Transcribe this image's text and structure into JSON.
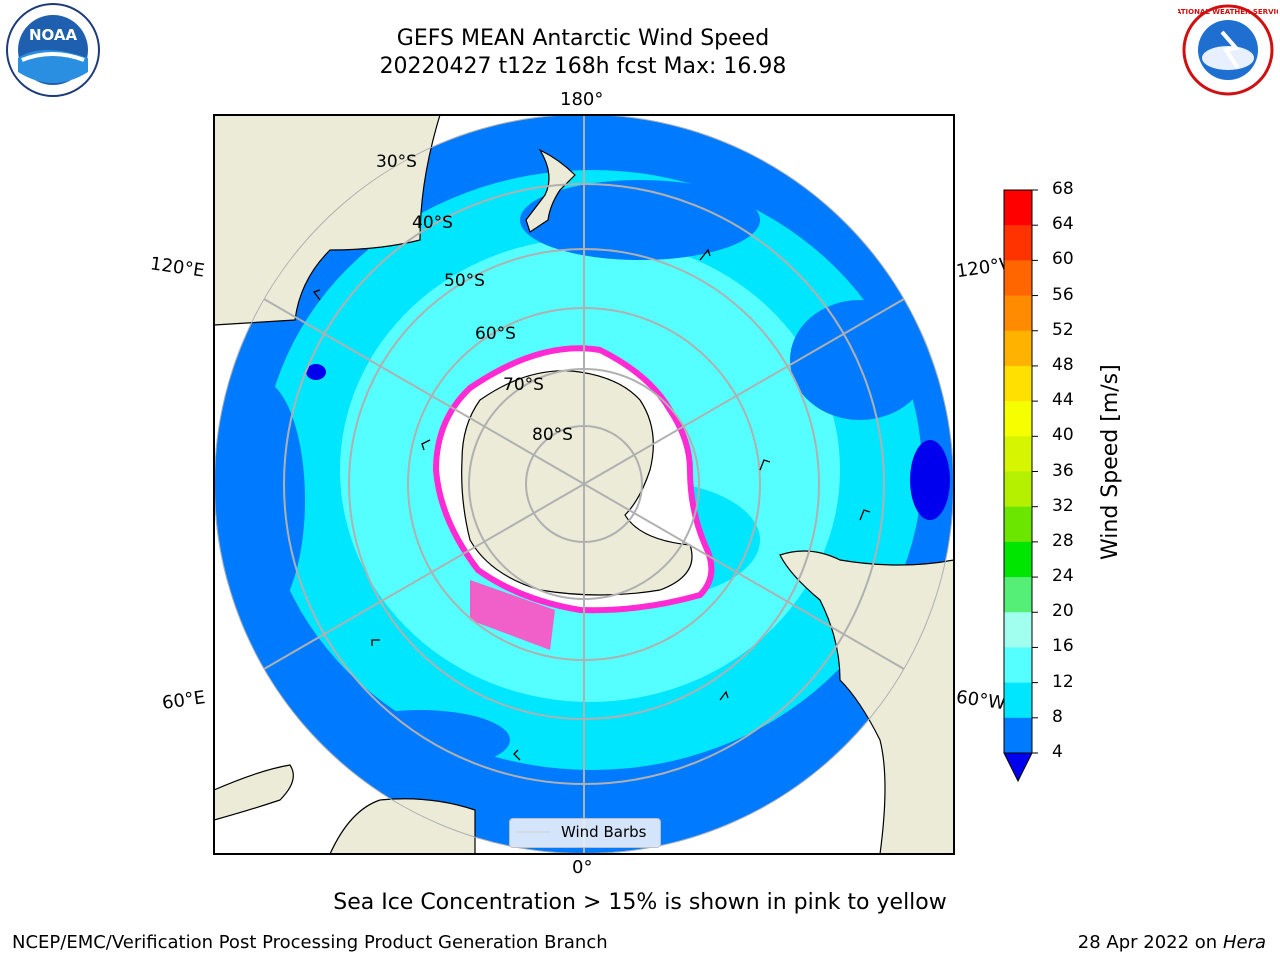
{
  "header": {
    "title": "GEFS MEAN Antarctic Wind Speed",
    "subtitle": "20220427 t12z 168h fcst   Max: 16.98"
  },
  "logos": {
    "left": {
      "name": "noaa-logo",
      "text": "NOAA"
    },
    "right": {
      "name": "nws-logo",
      "text": "NATIONAL WEATHER SERVICE"
    }
  },
  "map": {
    "projection": "south-polar-stereographic",
    "lon_labels": {
      "top": "180°",
      "bottom": "0°",
      "left_upper": "120°E",
      "left_lower": "60°E",
      "right_upper": "120°W",
      "right_lower": "60°W"
    },
    "lat_labels": [
      "30°S",
      "40°S",
      "50°S",
      "60°S",
      "70°S",
      "80°S"
    ],
    "legend_label": "Wind Barbs"
  },
  "colorbar": {
    "label": "Wind Speed [m/s]",
    "ticks": [
      "68",
      "64",
      "60",
      "56",
      "52",
      "48",
      "44",
      "40",
      "36",
      "32",
      "28",
      "24",
      "20",
      "16",
      "12",
      "8",
      "4"
    ],
    "colors": [
      "#ff0000",
      "#ff3300",
      "#ff6600",
      "#ff8c00",
      "#ffb300",
      "#ffe000",
      "#f5ff00",
      "#d5f500",
      "#b4f000",
      "#6be600",
      "#00e600",
      "#55ee77",
      "#a0ffee",
      "#55ffff",
      "#00e6ff",
      "#007bff",
      "#0000ee"
    ],
    "extend_color": "#0000ee"
  },
  "footer": {
    "caption": "Sea Ice Concentration > 15% is shown in pink to yellow",
    "left": "NCEP/EMC/Verification Post Processing Product Generation Branch",
    "right_date": "28 Apr 2022 on ",
    "right_host": "Hera"
  }
}
